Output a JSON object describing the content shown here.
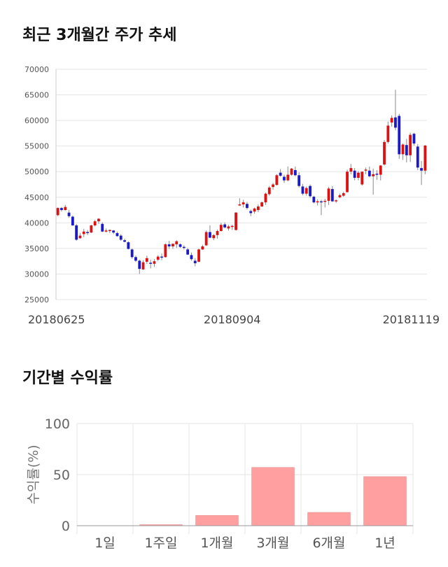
{
  "sections": {
    "price_title": "최근 3개월간 주가 추세",
    "returns_title": "기간별 수익률"
  },
  "colors": {
    "up": "#dd1111",
    "down": "#1a1acc",
    "bar": "#ff9f9f",
    "grid": "#e5e5e5"
  },
  "chart_data": [
    {
      "type": "candlestick",
      "title": "최근 3개월간 주가 추세",
      "ylim": [
        25000,
        70000
      ],
      "yticks": [
        "25000",
        "30000",
        "35000",
        "40000",
        "45000",
        "50000",
        "55000",
        "60000",
        "65000",
        "70000"
      ],
      "xticks": [
        {
          "index": 0,
          "label": "20180625"
        },
        {
          "index": 47,
          "label": "20180904"
        },
        {
          "index": 96,
          "label": "20181119"
        }
      ],
      "candles": [
        [
          41500,
          43000,
          41300,
          42900
        ],
        [
          42900,
          43100,
          42200,
          42500
        ],
        [
          42500,
          43500,
          42400,
          43100
        ],
        [
          42000,
          42500,
          41000,
          41300
        ],
        [
          41200,
          41400,
          39400,
          39500
        ],
        [
          39500,
          39800,
          36500,
          36700
        ],
        [
          37000,
          38000,
          36900,
          37500
        ],
        [
          37800,
          38800,
          37200,
          38300
        ],
        [
          38200,
          38600,
          37600,
          38000
        ],
        [
          38100,
          39600,
          38000,
          39500
        ],
        [
          39500,
          40600,
          39300,
          40300
        ],
        [
          40300,
          40900,
          39800,
          40800
        ],
        [
          39800,
          40100,
          38200,
          38300
        ],
        [
          38300,
          38900,
          38100,
          38500
        ],
        [
          38500,
          38700,
          38000,
          38600
        ],
        [
          38500,
          38600,
          37800,
          38100
        ],
        [
          38000,
          38300,
          37300,
          37400
        ],
        [
          37500,
          37800,
          36500,
          36700
        ],
        [
          36600,
          36900,
          36200,
          36300
        ],
        [
          36200,
          36400,
          34800,
          34900
        ],
        [
          34800,
          35000,
          33000,
          33300
        ],
        [
          33300,
          33600,
          32400,
          32600
        ],
        [
          32600,
          32800,
          30000,
          31000
        ],
        [
          30900,
          32700,
          30800,
          32300
        ],
        [
          32400,
          33600,
          32000,
          33100
        ],
        [
          32200,
          32800,
          31100,
          32000
        ],
        [
          32000,
          32900,
          31400,
          32500
        ],
        [
          32800,
          33700,
          32500,
          33400
        ],
        [
          33400,
          34000,
          32700,
          33300
        ],
        [
          33300,
          36000,
          33200,
          35800
        ],
        [
          35800,
          36500,
          34900,
          35400
        ],
        [
          35400,
          36000,
          34900,
          35900
        ],
        [
          35800,
          36600,
          35100,
          36400
        ],
        [
          35800,
          36000,
          35100,
          35300
        ],
        [
          35300,
          35600,
          34800,
          35100
        ],
        [
          34800,
          35100,
          33700,
          33800
        ],
        [
          33700,
          34200,
          32600,
          32900
        ],
        [
          32600,
          33100,
          31500,
          32100
        ],
        [
          32400,
          35000,
          32300,
          34800
        ],
        [
          34800,
          35700,
          34700,
          35400
        ],
        [
          35600,
          38500,
          35500,
          38200
        ],
        [
          38200,
          39500,
          37000,
          37100
        ],
        [
          37000,
          37800,
          36600,
          37600
        ],
        [
          37600,
          38700,
          36900,
          38400
        ],
        [
          38400,
          40000,
          38300,
          39600
        ],
        [
          39700,
          40100,
          38900,
          39100
        ],
        [
          38900,
          39600,
          38500,
          39300
        ],
        [
          39300,
          39600,
          38600,
          39400
        ],
        [
          38600,
          42100,
          38500,
          42000
        ],
        [
          43400,
          44800,
          43300,
          43600
        ],
        [
          43600,
          44500,
          43000,
          44000
        ],
        [
          43700,
          44100,
          42600,
          42900
        ],
        [
          42300,
          42600,
          41300,
          41900
        ],
        [
          42200,
          43000,
          41800,
          42800
        ],
        [
          42500,
          43600,
          42100,
          43200
        ],
        [
          43200,
          44200,
          43100,
          44000
        ],
        [
          44000,
          45900,
          43500,
          45700
        ],
        [
          45600,
          47200,
          45300,
          46900
        ],
        [
          47000,
          47800,
          46500,
          47500
        ],
        [
          47400,
          49500,
          47300,
          49300
        ],
        [
          49800,
          50500,
          49000,
          49200
        ],
        [
          49000,
          49400,
          47800,
          48300
        ],
        [
          48300,
          51000,
          48100,
          49400
        ],
        [
          49400,
          50700,
          49200,
          50600
        ],
        [
          50300,
          51000,
          49100,
          49300
        ],
        [
          49300,
          49900,
          46900,
          47200
        ],
        [
          47100,
          47600,
          45400,
          45700
        ],
        [
          45700,
          47100,
          45300,
          46800
        ],
        [
          47200,
          47500,
          44900,
          45200
        ],
        [
          45100,
          45300,
          43800,
          44000
        ],
        [
          44000,
          44600,
          43400,
          44200
        ],
        [
          44200,
          44500,
          41500,
          44100
        ],
        [
          44100,
          44700,
          43000,
          44300
        ],
        [
          44300,
          47000,
          43500,
          46700
        ],
        [
          46600,
          47200,
          44100,
          44200
        ],
        [
          44200,
          44600,
          43900,
          44400
        ],
        [
          45000,
          45700,
          44800,
          45400
        ],
        [
          45300,
          46100,
          45100,
          45800
        ],
        [
          46000,
          50400,
          45900,
          50000
        ],
        [
          50000,
          51500,
          49500,
          50700
        ],
        [
          50200,
          50700,
          48300,
          48800
        ],
        [
          48800,
          50100,
          48300,
          49800
        ],
        [
          47500,
          50000,
          47300,
          50000
        ],
        [
          50400,
          50800,
          49500,
          50400
        ],
        [
          50200,
          51000,
          48900,
          49100
        ],
        [
          49100,
          50600,
          45500,
          49500
        ],
        [
          49600,
          50300,
          48400,
          49400
        ],
        [
          49400,
          51300,
          48300,
          51200
        ],
        [
          51400,
          56200,
          51200,
          55800
        ],
        [
          55800,
          59800,
          55500,
          59000
        ],
        [
          59600,
          61000,
          58800,
          60500
        ],
        [
          60600,
          66000,
          58100,
          58600
        ],
        [
          60900,
          61300,
          52500,
          53400
        ],
        [
          53400,
          55500,
          52300,
          55300
        ],
        [
          55200,
          56400,
          51800,
          53200
        ],
        [
          53200,
          57600,
          51900,
          57200
        ],
        [
          57400,
          57600,
          55100,
          55500
        ],
        [
          54900,
          55400,
          50300,
          50800
        ],
        [
          50700,
          52100,
          47400,
          50200
        ],
        [
          50200,
          55200,
          49500,
          55100
        ]
      ]
    },
    {
      "type": "bar",
      "title": "기간별 수익률",
      "ylabel": "수익률(%)",
      "ylim": [
        0,
        100
      ],
      "yticks": [
        "0",
        "50",
        "100"
      ],
      "categories": [
        "1일",
        "1주일",
        "1개월",
        "3개월",
        "6개월",
        "1년"
      ],
      "values": [
        0,
        1,
        10,
        57,
        13,
        48
      ]
    }
  ]
}
